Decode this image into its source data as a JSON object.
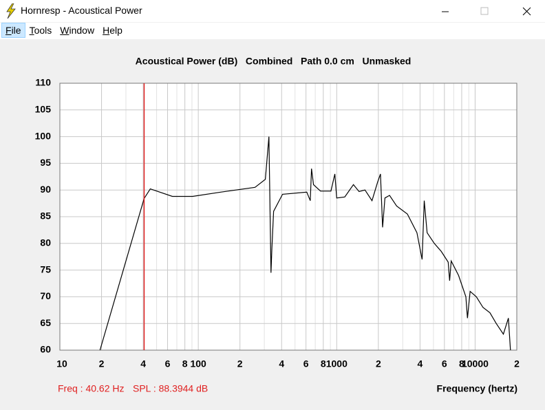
{
  "window": {
    "title": "Hornresp - Acoustical Power",
    "menu": [
      "File",
      "Tools",
      "Window",
      "Help"
    ]
  },
  "chart_data": {
    "type": "line",
    "title": "Acoustical Power (dB)   Combined   Path 0.0 cm   Unmasked",
    "x_label": "Frequency (hertz)",
    "xlog": true,
    "grid": true,
    "xlim": [
      10,
      20000
    ],
    "ylim": [
      60,
      110
    ],
    "xticks": [
      10,
      {
        "value": 20,
        "label": "2"
      },
      {
        "value": 40,
        "label": "4"
      },
      {
        "value": 60,
        "label": "6"
      },
      {
        "value": 80,
        "label": "8"
      },
      100,
      {
        "value": 200,
        "label": "2"
      },
      {
        "value": 400,
        "label": "4"
      },
      {
        "value": 600,
        "label": "6"
      },
      {
        "value": 800,
        "label": "8"
      },
      1000,
      {
        "value": 2000,
        "label": "2"
      },
      {
        "value": 4000,
        "label": "4"
      },
      {
        "value": 6000,
        "label": "6"
      },
      {
        "value": 8000,
        "label": "8"
      },
      10000,
      {
        "value": 20000,
        "label": "2"
      }
    ],
    "x_minor_grid": [
      30,
      50,
      70,
      90,
      300,
      500,
      700,
      900,
      3000,
      5000,
      7000,
      9000
    ],
    "yticks": [
      60,
      65,
      70,
      75,
      80,
      85,
      90,
      95,
      100,
      105,
      110
    ],
    "x": [
      19.5,
      40.6,
      45,
      65,
      91,
      145,
      257,
      305,
      324,
      335,
      340,
      350,
      406,
      608,
      644,
      658,
      680,
      764,
      908,
      970,
      1000,
      1143,
      1320,
      1450,
      1600,
      1800,
      1976,
      2070,
      2146,
      2230,
      2410,
      2710,
      3240,
      3800,
      4140,
      4290,
      4500,
      5070,
      5690,
      6390,
      6540,
      6720,
      7590,
      8570,
      8800,
      9200,
      10200,
      11400,
      12800,
      14200,
      16000,
      17400,
      18000
    ],
    "color": "#000000",
    "values": [
      60,
      88.4,
      90.2,
      88.8,
      88.8,
      89.6,
      90.5,
      92,
      100,
      74.5,
      79,
      86,
      89.2,
      89.6,
      88,
      94,
      91,
      89.8,
      89.8,
      93,
      88.5,
      88.7,
      91,
      89.7,
      90,
      88,
      91.5,
      93,
      83,
      88.5,
      89,
      87,
      85.5,
      82,
      77,
      88,
      82,
      80,
      78.5,
      76.5,
      73,
      76.7,
      74,
      70,
      66,
      71,
      70,
      68,
      67,
      65,
      63,
      66,
      60
    ],
    "cursor": {
      "x": 40.62,
      "color": "#e02020",
      "freq_label": "Freq : 40.62 Hz",
      "spl_label": "SPL : 88.3944 dB"
    }
  }
}
